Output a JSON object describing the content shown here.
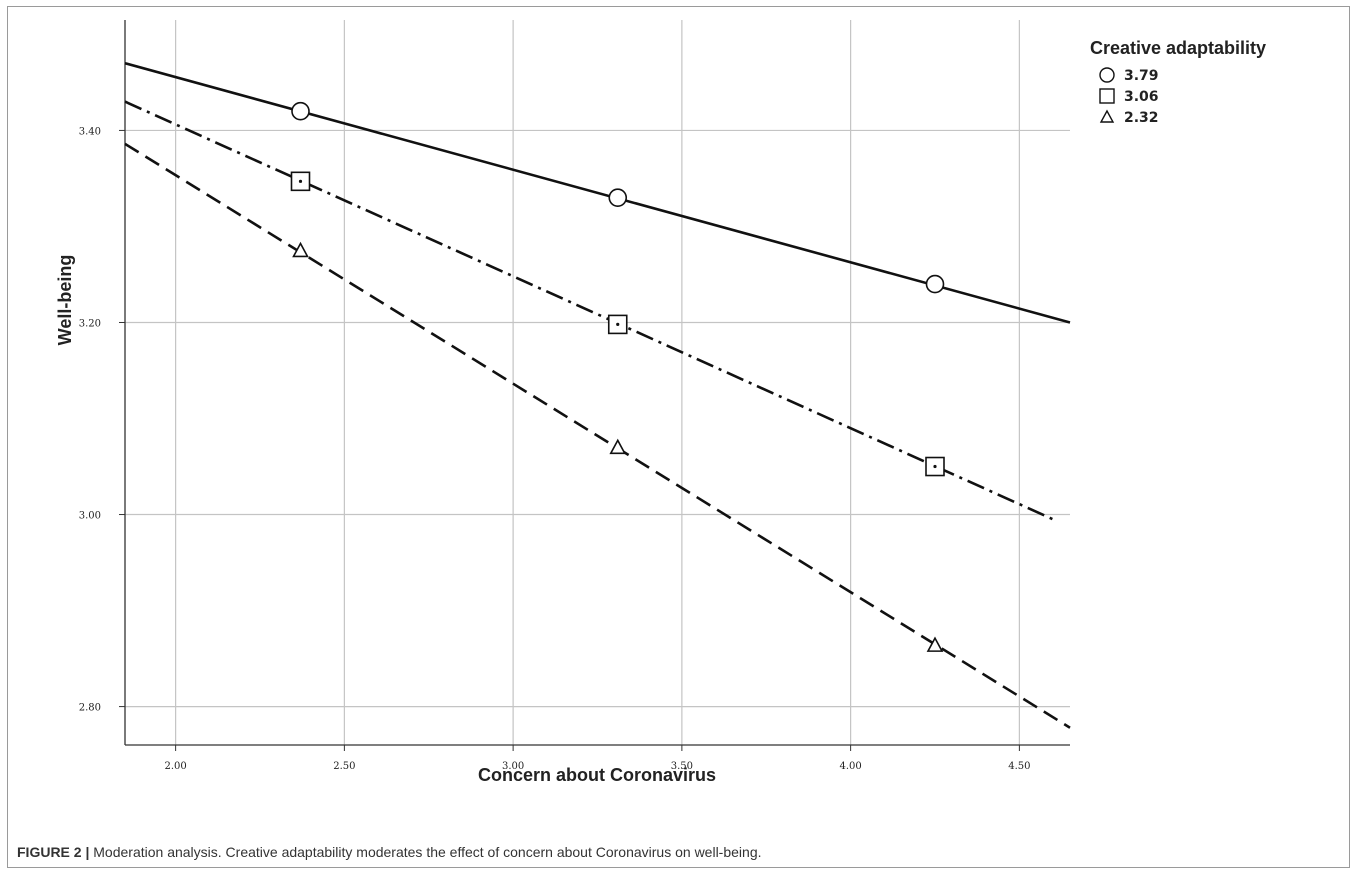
{
  "figure": {
    "label": "FIGURE 2 |",
    "caption": " Moderation analysis. Creative adaptability moderates the effect of concern about Coronavirus on well-being."
  },
  "chart_data": {
    "type": "line",
    "xlabel": "Concern about Coronavirus",
    "ylabel": "Well-being",
    "xlim": [
      1.85,
      4.65
    ],
    "ylim": [
      2.76,
      3.515
    ],
    "x_ticks": [
      2.0,
      2.5,
      3.0,
      3.5,
      4.0,
      4.5
    ],
    "x_tick_labels": [
      "2.00",
      "2.50",
      "3.00",
      "3.50",
      "4.00",
      "4.50"
    ],
    "y_ticks": [
      2.8,
      3.0,
      3.2,
      3.4
    ],
    "y_tick_labels": [
      "2.80",
      "3.00",
      "3.20",
      "3.40"
    ],
    "grid": true,
    "legend_title": "Creative adaptability",
    "legend_position": "top-right",
    "series": [
      {
        "name": "3.79",
        "marker": "circle",
        "line_style": "solid",
        "line_x": [
          1.85,
          4.65
        ],
        "line_y": [
          3.47,
          3.2
        ],
        "points_x": [
          2.37,
          3.31,
          4.25
        ],
        "points_y": [
          3.42,
          3.33,
          3.24
        ]
      },
      {
        "name": "3.06",
        "marker": "square",
        "line_style": "dash-dot",
        "line_x": [
          1.85,
          4.6
        ],
        "line_y": [
          3.43,
          2.995
        ],
        "points_x": [
          2.37,
          3.31,
          4.25
        ],
        "points_y": [
          3.347,
          3.198,
          3.05
        ]
      },
      {
        "name": "2.32",
        "marker": "triangle",
        "line_style": "dashed",
        "line_x": [
          1.85,
          4.65
        ],
        "line_y": [
          3.386,
          2.778
        ],
        "points_x": [
          2.37,
          3.31,
          4.25
        ],
        "points_y": [
          3.275,
          3.07,
          2.864
        ]
      }
    ]
  }
}
